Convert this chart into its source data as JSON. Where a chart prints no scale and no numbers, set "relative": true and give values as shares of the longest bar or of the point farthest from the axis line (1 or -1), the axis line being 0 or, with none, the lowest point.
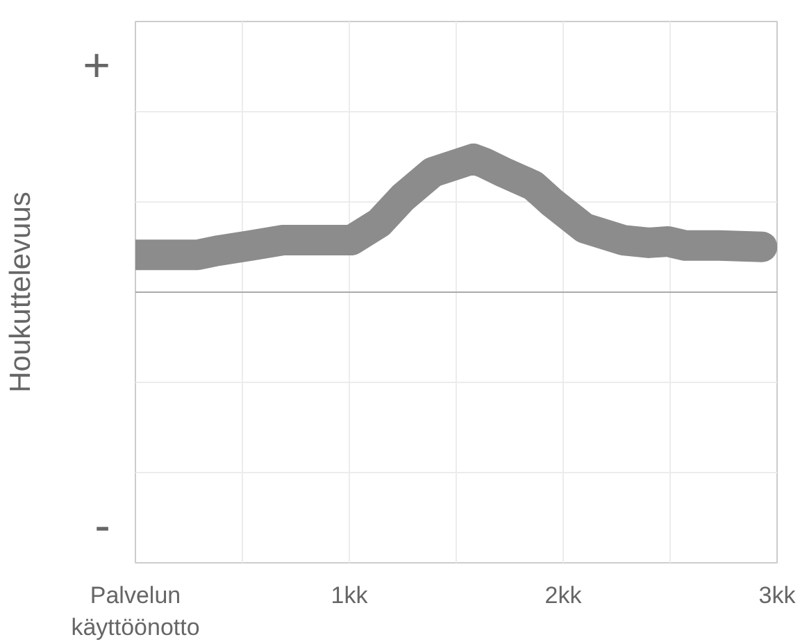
{
  "chart_data": {
    "type": "line",
    "ylabel": "Houkuttelevuus",
    "relative": true,
    "annotations": [
      "+",
      "-"
    ],
    "xlim": [
      0,
      3
    ],
    "xticks": [
      {
        "value": 0,
        "label": "Palvelun\nkäyttöönotto"
      },
      {
        "value": 0.5,
        "label": null
      },
      {
        "value": 1,
        "label": "1kk"
      },
      {
        "value": 1.5,
        "label": null
      },
      {
        "value": 2,
        "label": "2kk"
      },
      {
        "value": 2.5,
        "label": null
      },
      {
        "value": 3,
        "label": "3kk"
      }
    ],
    "grid": true,
    "line_style": "solid",
    "series": [
      {
        "color": "#8c8c8c",
        "x": [
          0,
          0.29,
          0.38,
          0.54,
          0.69,
          1.01,
          1.14,
          1.25,
          1.39,
          1.58,
          1.63,
          1.72,
          1.86,
          1.95,
          2.1,
          2.28,
          2.4,
          2.49,
          2.57,
          2.73,
          2.93
        ],
        "values": [
          0.28,
          0.28,
          0.31,
          0.35,
          0.39,
          0.39,
          0.52,
          0.71,
          0.9,
          1,
          0.97,
          0.9,
          0.8,
          0.67,
          0.48,
          0.39,
          0.37,
          0.38,
          0.35,
          0.35,
          0.34
        ]
      }
    ]
  }
}
